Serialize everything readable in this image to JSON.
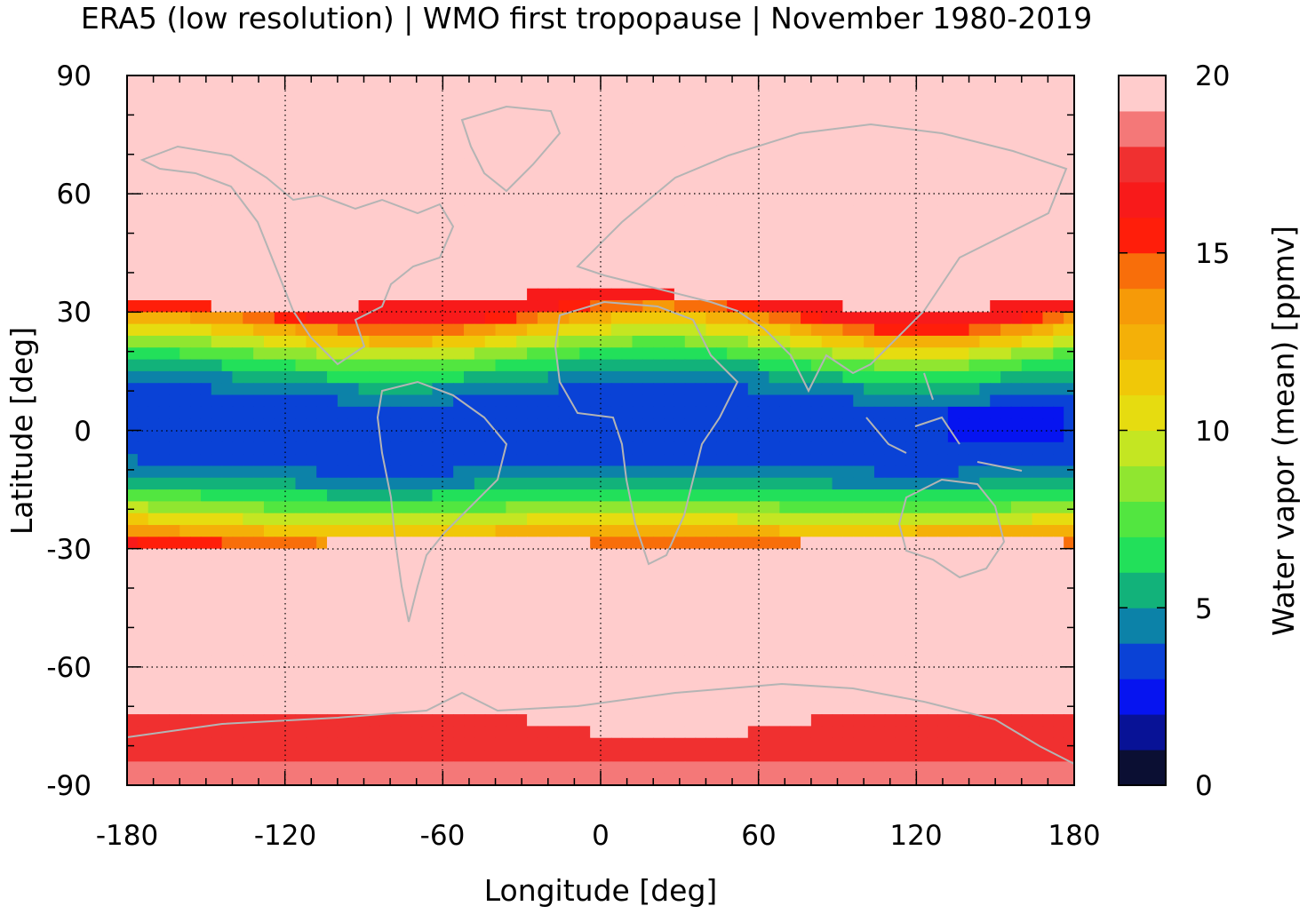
{
  "chart_data": {
    "type": "heatmap",
    "title": "ERA5 (low resolution) | WMO first tropopause | November 1980-2019",
    "xlabel": "Longitude [deg]",
    "ylabel": "Latitude [deg]",
    "xlim": [
      -180,
      180
    ],
    "ylim": [
      -90,
      90
    ],
    "xticks": [
      -180,
      -120,
      -60,
      0,
      60,
      120,
      180
    ],
    "yticks": [
      90,
      60,
      30,
      0,
      -30,
      -60,
      -90
    ],
    "xtick_labels": [
      "-180",
      "-120",
      "-60",
      "0",
      "60",
      "120",
      "180"
    ],
    "ytick_labels": [
      "90",
      "60",
      "30",
      "0",
      "-30",
      "-60",
      "-90"
    ],
    "grid": true,
    "colorbar": {
      "label": "Water vapor (mean) [ppmv]",
      "range": [
        0,
        20
      ],
      "ticks": [
        0,
        5,
        10,
        15,
        20
      ],
      "tick_labels": [
        "0",
        "5",
        "10",
        "15",
        "20"
      ],
      "colors": [
        "#0b0f33",
        "#081296",
        "#0614f0",
        "#0a42d6",
        "#0c82a8",
        "#12b27a",
        "#22e05a",
        "#52e640",
        "#90e630",
        "#c4e622",
        "#e6dc10",
        "#f0c808",
        "#f4b008",
        "#f69a08",
        "#f86e0a",
        "#ff1e0a",
        "#f81a1a",
        "#f03030",
        "#f47878",
        "#ffcccc"
      ]
    },
    "field": {
      "description_values": "zonal water vapor profile by latitude band (ppmv)",
      "tropical_min_ppmv": 3,
      "subtropical_edge_ppmv": 16,
      "high_latitude_ppmv": 20,
      "antarctic_ppmv": 16.5
    },
    "coastlines": "grey world map overlay"
  }
}
